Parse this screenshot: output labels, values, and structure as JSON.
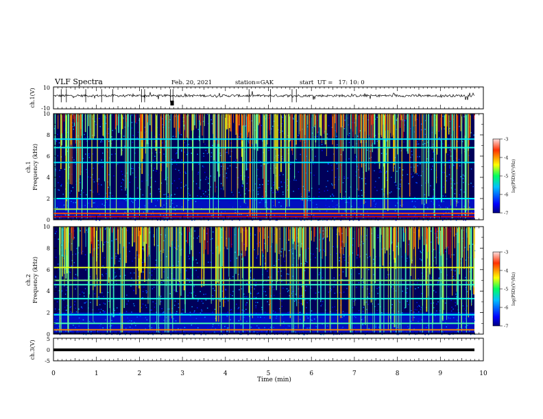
{
  "header": {
    "title": "VLF Spectra",
    "date": "Feb. 20, 2021",
    "station": "station=GAK",
    "start": "start  UT =   17: 10: 0"
  },
  "chart_data": {
    "type": "heatmap",
    "xlabel": "Time (min)",
    "xlim": [
      0,
      10
    ],
    "x_ticks": [
      "0",
      "1",
      "2",
      "3",
      "4",
      "5",
      "6",
      "7",
      "8",
      "9",
      "10"
    ],
    "panels": [
      {
        "name": "waveform-ch1",
        "ylabel": "ch.1(V)",
        "ylim": [
          -10,
          10
        ],
        "y_ticks": [
          "10",
          "-10"
        ]
      },
      {
        "name": "spectrogram-ch1",
        "ylabel": "ch.1\nFrequency (kHz)",
        "ylim": [
          0,
          10
        ],
        "y_ticks": [
          "0",
          "2",
          "4",
          "6",
          "8",
          "10"
        ],
        "colorbar": {
          "label": "log(PSD)(V²/Hz)",
          "range": [
            -7,
            -3
          ],
          "ticks": [
            "-3",
            "-4",
            "-5",
            "-6",
            "-7"
          ]
        }
      },
      {
        "name": "spectrogram-ch2",
        "ylabel": "ch.2\nFrequency (kHz)",
        "ylim": [
          0,
          10
        ],
        "y_ticks": [
          "0",
          "2",
          "4",
          "6",
          "8",
          "10"
        ],
        "colorbar": {
          "label": "log(PSD)(V²/Hz)",
          "range": [
            -7,
            -3
          ],
          "ticks": [
            "-3",
            "-4",
            "-5",
            "-6",
            "-7"
          ]
        }
      },
      {
        "name": "waveform-ch3",
        "ylabel": "ch.3(V)",
        "ylim": [
          -5,
          5
        ],
        "y_ticks": [
          "5",
          "0",
          "-5"
        ]
      }
    ],
    "ch1_bands_khz": [
      {
        "f": 0.3,
        "level": -3.3
      },
      {
        "f": 0.6,
        "level": -3.8
      },
      {
        "f": 1.0,
        "level": -4.8
      },
      {
        "f": 2.0,
        "level": -5.5
      },
      {
        "f": 5.4,
        "level": -5.6
      },
      {
        "f": 6.8,
        "level": -5.4
      },
      {
        "f": 7.6,
        "level": -5.6
      }
    ],
    "ch2_bands_khz": [
      {
        "f": 0.4,
        "level": -4.0
      },
      {
        "f": 1.0,
        "level": -5.2
      },
      {
        "f": 1.8,
        "level": -5.5
      },
      {
        "f": 3.3,
        "level": -5.4
      },
      {
        "f": 4.6,
        "level": -5.3
      },
      {
        "f": 5.0,
        "level": -5.0
      },
      {
        "f": 6.2,
        "level": -4.6
      }
    ]
  }
}
